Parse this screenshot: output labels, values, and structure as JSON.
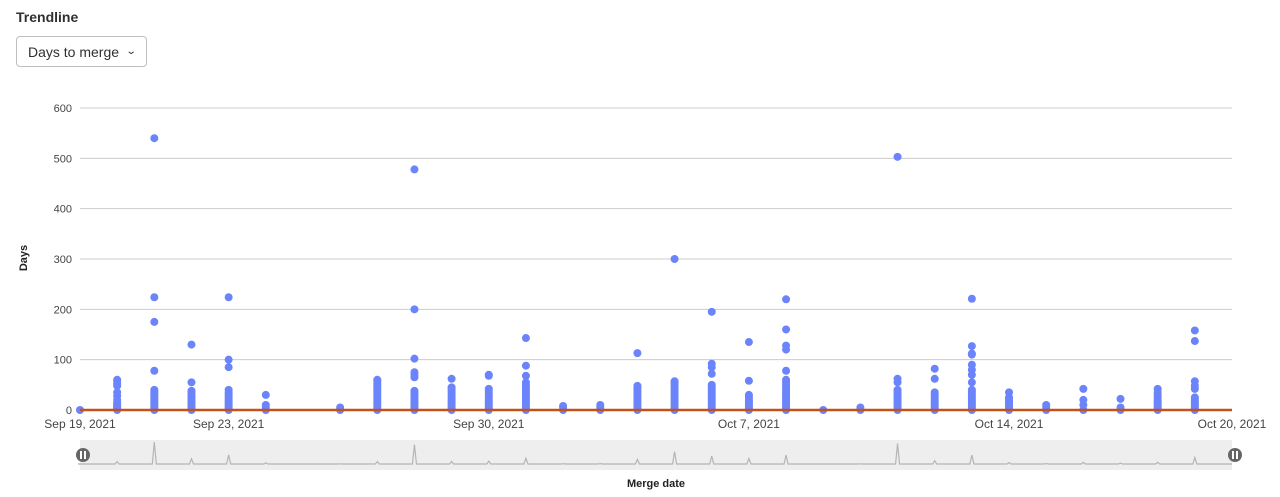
{
  "header": {
    "title": "Trendline"
  },
  "metric_select": {
    "selected": "Days to merge"
  },
  "colors": {
    "points": "#6b84fb",
    "trendline": "#c1521b",
    "grid": "#cccccc",
    "slider_bg": "#eeeeee",
    "slider_line": "#b5b5b5"
  },
  "chart_data": {
    "type": "scatter",
    "title": "",
    "xlabel": "Merge date",
    "ylabel": "Days",
    "xlim": [
      "2021-09-19",
      "2021-10-20"
    ],
    "ylim": [
      0,
      600
    ],
    "yticks": [
      0,
      100,
      200,
      300,
      400,
      500,
      600
    ],
    "xticks": [
      {
        "date": "2021-09-19",
        "label": "Sep 19, 2021"
      },
      {
        "date": "2021-09-23",
        "label": "Sep 23, 2021"
      },
      {
        "date": "2021-09-30",
        "label": "Sep 30, 2021"
      },
      {
        "date": "2021-10-07",
        "label": "Oct 7, 2021"
      },
      {
        "date": "2021-10-14",
        "label": "Oct 14, 2021"
      },
      {
        "date": "2021-10-20",
        "label": "Oct 20, 2021"
      }
    ],
    "grid": true,
    "legend": "none",
    "trendline": {
      "start": [
        "2021-09-19",
        0
      ],
      "end": [
        "2021-10-20",
        0
      ]
    },
    "points": [
      {
        "date": "2021-09-19",
        "values": [
          0
        ]
      },
      {
        "date": "2021-09-20",
        "values": [
          0,
          2,
          4,
          6,
          8,
          10,
          12,
          15,
          20,
          28,
          35,
          48,
          52,
          57,
          60
        ]
      },
      {
        "date": "2021-09-21",
        "values": [
          0,
          3,
          6,
          9,
          12,
          15,
          18,
          21,
          24,
          27,
          30,
          33,
          36,
          40,
          78,
          175,
          224,
          540
        ]
      },
      {
        "date": "2021-09-22",
        "values": [
          0,
          3,
          6,
          9,
          12,
          15,
          18,
          22,
          26,
          30,
          34,
          38,
          55,
          130
        ]
      },
      {
        "date": "2021-09-23",
        "values": [
          0,
          3,
          6,
          9,
          12,
          15,
          18,
          22,
          26,
          30,
          34,
          40,
          85,
          100,
          224
        ]
      },
      {
        "date": "2021-09-24",
        "values": [
          0,
          5,
          10,
          30
        ]
      },
      {
        "date": "2021-09-26",
        "values": [
          0,
          5
        ]
      },
      {
        "date": "2021-09-27",
        "values": [
          0,
          4,
          8,
          12,
          16,
          20,
          24,
          28,
          32,
          36,
          40,
          44,
          48,
          52,
          57,
          60
        ]
      },
      {
        "date": "2021-09-28",
        "values": [
          0,
          3,
          6,
          9,
          12,
          15,
          18,
          22,
          26,
          30,
          34,
          38,
          65,
          70,
          75,
          102,
          200,
          478
        ]
      },
      {
        "date": "2021-09-29",
        "values": [
          0,
          3,
          6,
          9,
          12,
          15,
          18,
          22,
          26,
          30,
          34,
          38,
          42,
          45,
          62
        ]
      },
      {
        "date": "2021-09-30",
        "values": [
          0,
          3,
          6,
          9,
          12,
          15,
          18,
          22,
          26,
          30,
          34,
          38,
          42,
          68,
          70
        ]
      },
      {
        "date": "2021-10-01",
        "values": [
          0,
          4,
          8,
          12,
          16,
          20,
          24,
          28,
          32,
          36,
          40,
          45,
          50,
          55,
          68,
          88,
          143
        ]
      },
      {
        "date": "2021-10-02",
        "values": [
          0,
          5,
          8
        ]
      },
      {
        "date": "2021-10-03",
        "values": [
          0,
          5,
          10
        ]
      },
      {
        "date": "2021-10-04",
        "values": [
          0,
          4,
          8,
          12,
          16,
          20,
          24,
          28,
          32,
          36,
          40,
          44,
          48,
          113
        ]
      },
      {
        "date": "2021-10-05",
        "values": [
          0,
          4,
          8,
          12,
          16,
          20,
          24,
          28,
          32,
          36,
          40,
          45,
          50,
          54,
          57,
          300
        ]
      },
      {
        "date": "2021-10-06",
        "values": [
          0,
          4,
          8,
          12,
          16,
          20,
          24,
          28,
          32,
          36,
          40,
          45,
          50,
          72,
          85,
          92,
          195
        ]
      },
      {
        "date": "2021-10-07",
        "values": [
          0,
          3,
          6,
          9,
          12,
          15,
          18,
          22,
          26,
          30,
          58,
          135
        ]
      },
      {
        "date": "2021-10-08",
        "values": [
          0,
          4,
          8,
          12,
          16,
          20,
          24,
          28,
          32,
          36,
          40,
          45,
          50,
          55,
          60,
          78,
          120,
          128,
          160,
          220
        ]
      },
      {
        "date": "2021-10-09",
        "values": [
          0
        ]
      },
      {
        "date": "2021-10-10",
        "values": [
          0,
          5
        ]
      },
      {
        "date": "2021-10-11",
        "values": [
          0,
          4,
          8,
          12,
          16,
          20,
          24,
          28,
          32,
          36,
          40,
          55,
          62,
          503
        ]
      },
      {
        "date": "2021-10-12",
        "values": [
          0,
          3,
          6,
          9,
          12,
          15,
          18,
          22,
          26,
          30,
          35,
          62,
          82
        ]
      },
      {
        "date": "2021-10-13",
        "values": [
          0,
          4,
          8,
          12,
          16,
          20,
          24,
          28,
          32,
          36,
          40,
          55,
          70,
          80,
          90,
          110,
          112,
          127,
          221
        ]
      },
      {
        "date": "2021-10-14",
        "values": [
          0,
          3,
          6,
          9,
          12,
          15,
          18,
          22,
          25,
          35
        ]
      },
      {
        "date": "2021-10-15",
        "values": [
          0,
          5,
          10
        ]
      },
      {
        "date": "2021-10-16",
        "values": [
          0,
          10,
          20,
          42
        ]
      },
      {
        "date": "2021-10-17",
        "values": [
          0,
          5,
          22
        ]
      },
      {
        "date": "2021-10-18",
        "values": [
          0,
          3,
          6,
          9,
          12,
          15,
          18,
          22,
          26,
          30,
          35,
          42
        ]
      },
      {
        "date": "2021-10-19",
        "values": [
          0,
          3,
          6,
          9,
          12,
          15,
          18,
          22,
          25,
          42,
          48,
          57,
          137,
          158
        ]
      }
    ]
  }
}
